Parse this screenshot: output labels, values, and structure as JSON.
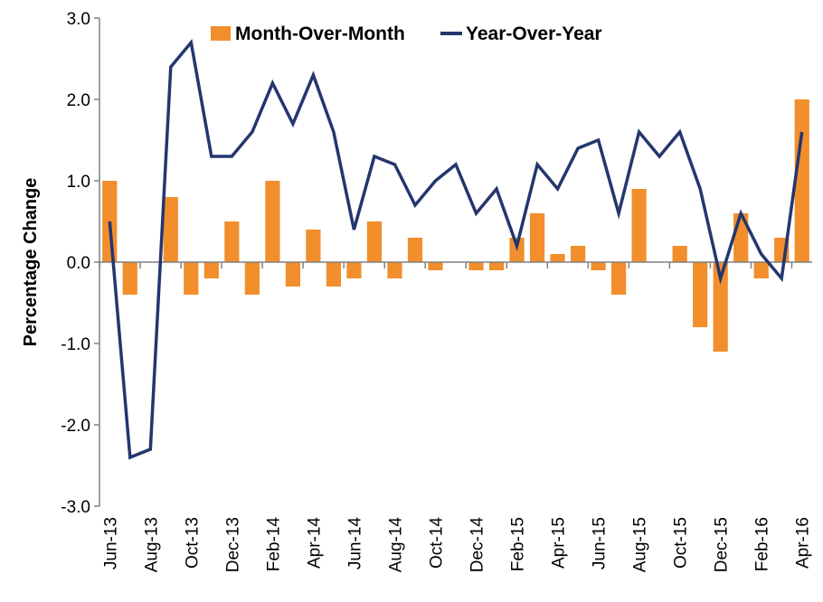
{
  "chart_data": {
    "type": "bar+line",
    "ylabel": "Percentage Change",
    "ylim": [
      -3.0,
      3.0
    ],
    "yticks": [
      "3.0",
      "2.0",
      "1.0",
      "0.0",
      "-1.0",
      "-2.0",
      "-3.0"
    ],
    "ytick_values": [
      3,
      2,
      1,
      0,
      -1,
      -2,
      -3
    ],
    "categories": [
      "Jun-13",
      "Jul-13",
      "Aug-13",
      "Sep-13",
      "Oct-13",
      "Nov-13",
      "Dec-13",
      "Jan-14",
      "Feb-14",
      "Mar-14",
      "Apr-14",
      "May-14",
      "Jun-14",
      "Jul-14",
      "Aug-14",
      "Sep-14",
      "Oct-14",
      "Nov-14",
      "Dec-14",
      "Jan-15",
      "Feb-15",
      "Mar-15",
      "Apr-15",
      "May-15",
      "Jun-15",
      "Jul-15",
      "Aug-15",
      "Sep-15",
      "Oct-15",
      "Nov-15",
      "Dec-15",
      "Jan-16",
      "Feb-16",
      "Mar-16",
      "Apr-16"
    ],
    "xtick_labels": [
      "Jun-13",
      "Aug-13",
      "Oct-13",
      "Dec-13",
      "Feb-14",
      "Apr-14",
      "Jun-14",
      "Aug-14",
      "Oct-14",
      "Dec-14",
      "Feb-15",
      "Apr-15",
      "Jun-15",
      "Aug-15",
      "Oct-15",
      "Dec-15",
      "Feb-16",
      "Apr-16"
    ],
    "series": [
      {
        "name": "Month-Over-Month",
        "type": "bar",
        "color": "#F28E2B",
        "values": [
          1.0,
          -0.4,
          0.0,
          0.8,
          -0.4,
          -0.2,
          0.5,
          -0.4,
          1.0,
          -0.3,
          0.4,
          -0.3,
          -0.2,
          0.5,
          -0.2,
          0.3,
          -0.1,
          0.0,
          -0.1,
          -0.1,
          0.3,
          0.6,
          0.1,
          0.2,
          -0.1,
          -0.4,
          0.9,
          0.0,
          0.2,
          -0.8,
          -1.1,
          0.6,
          -0.2,
          0.3,
          2.0
        ]
      },
      {
        "name": "Year-Over-Year",
        "type": "line",
        "color": "#24366E",
        "values": [
          0.5,
          -2.4,
          -2.3,
          2.4,
          2.7,
          1.3,
          1.3,
          1.6,
          2.2,
          1.7,
          2.3,
          1.6,
          0.4,
          1.3,
          1.2,
          0.7,
          1.0,
          1.2,
          0.6,
          0.9,
          0.2,
          1.2,
          0.9,
          1.4,
          1.5,
          0.6,
          1.6,
          1.3,
          1.6,
          0.9,
          -0.2,
          0.6,
          0.1,
          -0.2,
          1.6
        ]
      }
    ],
    "legend_position": "top",
    "grid": false
  }
}
